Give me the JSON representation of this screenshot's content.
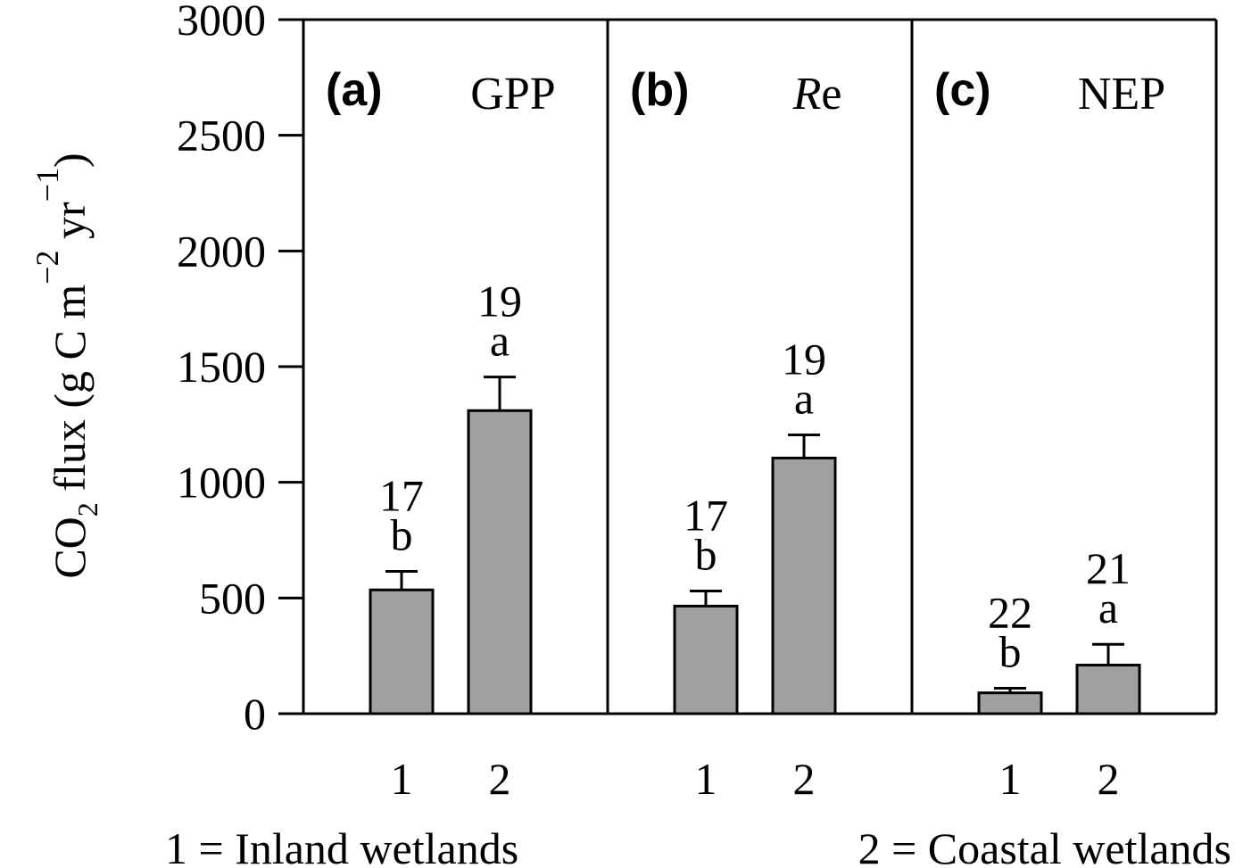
{
  "chart_data": {
    "type": "bar",
    "ylabel": {
      "main": "CO",
      "sub": "2",
      "rest": " flux  (g C m",
      "sup1": "−2",
      "mid": " yr",
      "sup2": "−1",
      "close": ")"
    },
    "ylim": [
      0,
      3000
    ],
    "yticks": [
      "0",
      "500",
      "1000",
      "1500",
      "2000",
      "2500",
      "3000"
    ],
    "categories": [
      "1",
      "2"
    ],
    "legend_text": {
      "inland": "1 = Inland wetlands",
      "coastal": "2 = Coastal wetlands"
    },
    "bar_color": "#a0a0a0",
    "panels": [
      {
        "tag": "(a)",
        "title": "GPP",
        "title_italic": "",
        "title_rest": "GPP",
        "values": [
          535,
          1310
        ],
        "errors": [
          80,
          145
        ],
        "n": [
          "17",
          "19"
        ],
        "letters": [
          "b",
          "a"
        ]
      },
      {
        "tag": "(b)",
        "title": "Re",
        "title_italic": "R",
        "title_rest": "e",
        "values": [
          465,
          1105
        ],
        "errors": [
          65,
          100
        ],
        "n": [
          "17",
          "19"
        ],
        "letters": [
          "b",
          "a"
        ]
      },
      {
        "tag": "(c)",
        "title": "NEP",
        "title_italic": "",
        "title_rest": "NEP",
        "values": [
          90,
          210
        ],
        "errors": [
          20,
          90
        ],
        "n": [
          "22",
          "21"
        ],
        "letters": [
          "b",
          "a"
        ]
      }
    ]
  }
}
